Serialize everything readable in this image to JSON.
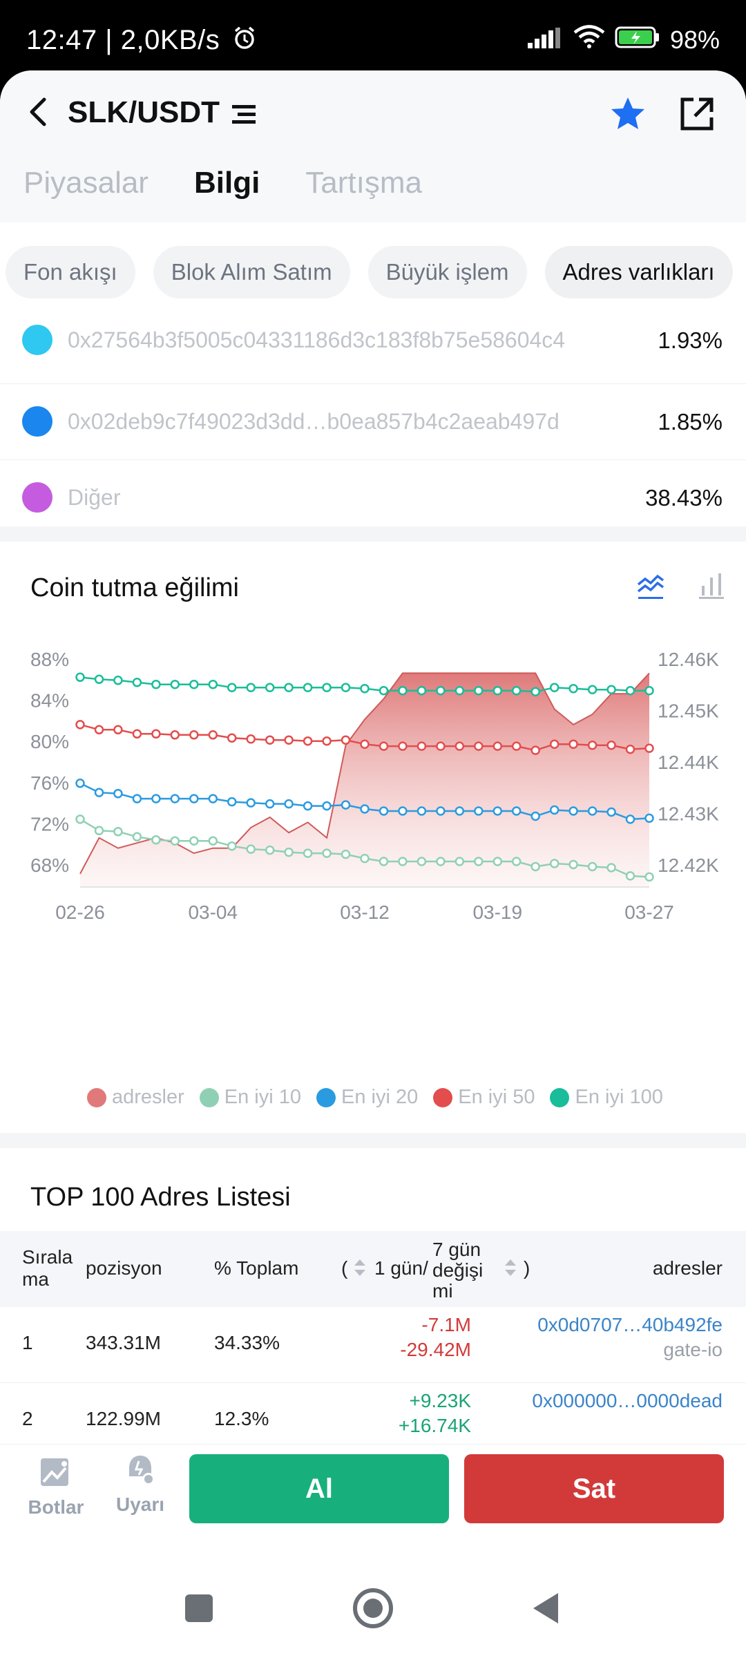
{
  "status": {
    "time": "12:47 | 2,0KB/s",
    "battery": "98%"
  },
  "header": {
    "pair": "SLK/USDT"
  },
  "tabs": [
    {
      "label": "Piyasalar"
    },
    {
      "label": "Bilgi"
    },
    {
      "label": "Tartışma"
    }
  ],
  "subtabs": [
    {
      "label": "Fon akışı"
    },
    {
      "label": "Blok Alım Satım"
    },
    {
      "label": "Büyük işlem"
    },
    {
      "label": "Adres varlıkları"
    }
  ],
  "holders": [
    {
      "address": "0x27564b3f5005c04331186d3c183f8b75e58604c4",
      "pct": "1.93%",
      "color": "#2ec8f0"
    },
    {
      "address": "0x02deb9c7f49023d3dd…b0ea857b4c2aeab497d",
      "pct": "1.85%",
      "color": "#1a86ee"
    },
    {
      "address": "Diğer",
      "pct": "38.43%",
      "color": "#c55ce0"
    }
  ],
  "trend": {
    "title": "Coin tutma eğilimi"
  },
  "chart_data": {
    "type": "line",
    "title": "Coin tutma eğilimi",
    "x": [
      "02-26",
      "02-27",
      "02-28",
      "02-29",
      "03-01",
      "03-02",
      "03-03",
      "03-04",
      "03-05",
      "03-06",
      "03-07",
      "03-08",
      "03-09",
      "03-10",
      "03-11",
      "03-12",
      "03-13",
      "03-14",
      "03-15",
      "03-16",
      "03-17",
      "03-18",
      "03-19",
      "03-20",
      "03-21",
      "03-22",
      "03-23",
      "03-24",
      "03-25",
      "03-26",
      "03-27"
    ],
    "xticks": [
      "02-26",
      "03-04",
      "03-12",
      "03-19",
      "03-27"
    ],
    "yleft": {
      "ticks": [
        "88%",
        "84%",
        "80%",
        "76%",
        "72%",
        "68%"
      ],
      "range": [
        66,
        89
      ]
    },
    "yright": {
      "ticks": [
        "12.46K",
        "12.45K",
        "12.44K",
        "12.43K",
        "12.42K"
      ],
      "range": [
        12414,
        12461
      ]
    },
    "area": {
      "name": "adresler",
      "color": "#e07a7a",
      "values": [
        12418,
        12425,
        12423,
        12424,
        12425,
        12424,
        12422,
        12423,
        12423,
        12427,
        12429,
        12426,
        12428,
        12425,
        12443,
        12448,
        12452,
        12457,
        12457,
        12457,
        12457,
        12457,
        12457,
        12457,
        12457,
        12450,
        12447,
        12449,
        12453,
        12453,
        12457
      ]
    },
    "series": [
      {
        "name": "En iyi 10",
        "color": "#8fd0b4",
        "values": [
          72.3,
          71.2,
          71.1,
          70.6,
          70.3,
          70.2,
          70.2,
          70.2,
          69.7,
          69.4,
          69.3,
          69.1,
          69.0,
          69.0,
          68.9,
          68.5,
          68.2,
          68.2,
          68.2,
          68.2,
          68.2,
          68.2,
          68.2,
          68.2,
          67.7,
          68.0,
          67.9,
          67.7,
          67.6,
          66.8,
          66.7
        ]
      },
      {
        "name": "En iyi 20",
        "color": "#2a9be0",
        "values": [
          75.8,
          74.9,
          74.8,
          74.3,
          74.3,
          74.3,
          74.3,
          74.3,
          74.0,
          73.9,
          73.8,
          73.8,
          73.6,
          73.6,
          73.7,
          73.3,
          73.1,
          73.1,
          73.1,
          73.1,
          73.1,
          73.1,
          73.1,
          73.1,
          72.6,
          73.2,
          73.1,
          73.1,
          73.0,
          72.3,
          72.4
        ]
      },
      {
        "name": "En iyi 50",
        "color": "#e34d4d",
        "values": [
          81.5,
          81.0,
          81.0,
          80.6,
          80.6,
          80.5,
          80.5,
          80.5,
          80.2,
          80.1,
          80.0,
          80.0,
          79.9,
          79.9,
          80.0,
          79.6,
          79.4,
          79.4,
          79.4,
          79.4,
          79.4,
          79.4,
          79.4,
          79.4,
          79.0,
          79.6,
          79.6,
          79.5,
          79.5,
          79.1,
          79.2
        ]
      },
      {
        "name": "En iyi 100",
        "color": "#19bd99",
        "values": [
          86.1,
          85.9,
          85.8,
          85.6,
          85.4,
          85.4,
          85.4,
          85.4,
          85.1,
          85.1,
          85.1,
          85.1,
          85.1,
          85.1,
          85.1,
          85.0,
          84.8,
          84.8,
          84.8,
          84.8,
          84.8,
          84.8,
          84.8,
          84.8,
          84.7,
          85.1,
          85.0,
          84.9,
          84.9,
          84.8,
          84.8
        ]
      }
    ],
    "legend": [
      "adresler",
      "En iyi 10",
      "En iyi 20",
      "En iyi 50",
      "En iyi 100"
    ],
    "legend_position": "bottom"
  },
  "top_list": {
    "title": "TOP 100 Adres Listesi",
    "headers": {
      "rank": "Sırala\nma",
      "position": "pozisyon",
      "total": "% Toplam",
      "change_open": "(",
      "change_1d": "1 gün/",
      "change_7d": "7 gün\ndeğişi\nmi",
      "change_close": ")",
      "address": "adresler"
    },
    "rows": [
      {
        "rank": "1",
        "position": "343.31M",
        "total": "34.33%",
        "d1": "-7.1M",
        "d7": "-29.42M",
        "trend": "down",
        "address": "0x0d0707…40b492fe",
        "label": "gate-io"
      },
      {
        "rank": "2",
        "position": "122.99M",
        "total": "12.3%",
        "d1": "+9.23K",
        "d7": "+16.74K",
        "trend": "up",
        "address": "0x000000…0000dead",
        "label": ""
      }
    ]
  },
  "bottom": {
    "bots": "Botlar",
    "alerts": "Uyarı",
    "buy": "Al",
    "sell": "Sat"
  }
}
